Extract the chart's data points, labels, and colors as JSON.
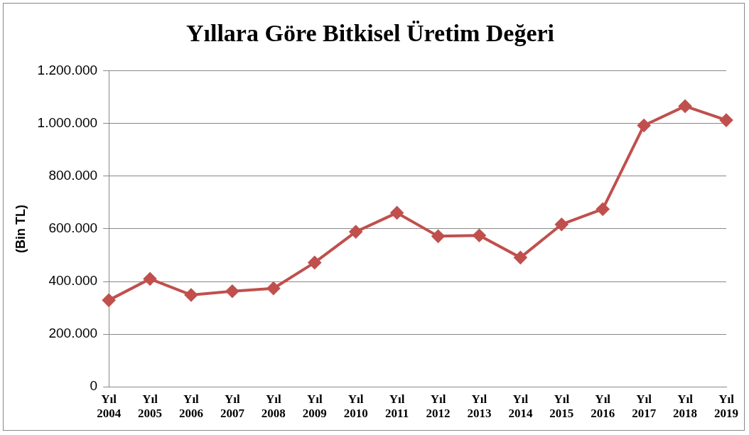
{
  "chart_data": {
    "type": "line",
    "title": "Yıllara Göre Bitkisel Üretim Değeri",
    "ylabel": "(Bin TL)",
    "categories": [
      "Yıl 2004",
      "Yıl 2005",
      "Yıl 2006",
      "Yıl 2007",
      "Yıl 2008",
      "Yıl 2009",
      "Yıl 2010",
      "Yıl 2011",
      "Yıl 2012",
      "Yıl 2013",
      "Yıl 2014",
      "Yıl 2015",
      "Yıl 2016",
      "Yıl 2017",
      "Yıl 2018",
      "Yıl 2019"
    ],
    "series": [
      {
        "color": "#c0504d",
        "values": [
          329000,
          410000,
          349000,
          363000,
          374000,
          472000,
          589000,
          661000,
          572000,
          575000,
          491000,
          617000,
          675000,
          993000,
          1066000,
          1013000
        ]
      }
    ],
    "ylim": [
      0,
      1200000
    ],
    "yticks": [
      0,
      {
        "value": 200000,
        "label": "200.000"
      },
      {
        "value": 400000,
        "label": "400.000"
      },
      {
        "value": 600000,
        "label": "600.000"
      },
      {
        "value": 800000,
        "label": "800.000"
      },
      {
        "value": 1000000,
        "label": "1.000.000"
      },
      {
        "value": 1200000,
        "label": "1.200.000"
      }
    ],
    "grid": "y",
    "legend": false,
    "marker": "diamond",
    "line_style": "solid"
  }
}
